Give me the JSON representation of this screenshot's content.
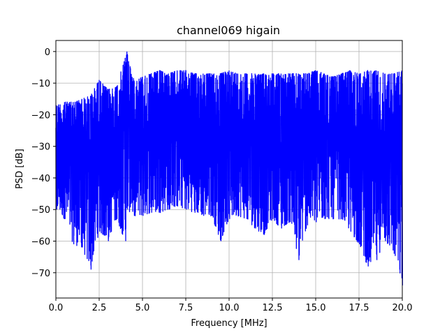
{
  "chart_data": {
    "type": "line",
    "title": "channel069 higain",
    "xlabel": "Frequency [MHz]",
    "ylabel": "PSD [dB]",
    "xlim": [
      0,
      20
    ],
    "ylim": [
      -78,
      3.5
    ],
    "xticks": [
      0,
      2.5,
      5,
      7.5,
      10,
      12.5,
      15,
      17.5,
      20
    ],
    "xtick_labels": [
      "0.0",
      "2.5",
      "5.0",
      "7.5",
      "10.0",
      "12.5",
      "15.0",
      "17.5",
      "20.0"
    ],
    "yticks": [
      0,
      -10,
      -20,
      -30,
      -40,
      -50,
      -60,
      -70
    ],
    "ytick_labels": [
      "0",
      "−10",
      "−20",
      "−30",
      "−40",
      "−50",
      "−60",
      "−70"
    ],
    "grid": true,
    "series": [
      {
        "color": "#0000ff",
        "x": [
          0,
          0.5,
          1.0,
          1.5,
          2.0,
          2.5,
          3.0,
          3.5,
          4.0,
          4.1,
          4.5,
          5.0,
          5.5,
          6.0,
          6.5,
          7.0,
          7.5,
          8.0,
          8.5,
          9.0,
          9.5,
          10.0,
          10.5,
          11.0,
          11.5,
          12.0,
          12.5,
          13.0,
          13.5,
          14.0,
          14.5,
          15.0,
          15.5,
          16.0,
          16.5,
          17.0,
          17.5,
          18.0,
          18.5,
          19.0,
          19.5,
          20.0
        ],
        "upper": [
          -17,
          -16,
          -16,
          -15,
          -14,
          -9,
          -12,
          -11,
          -2,
          0,
          -9,
          -8,
          -7,
          -6,
          -7,
          -6,
          -6,
          -7,
          -7,
          -7,
          -7,
          -6,
          -7,
          -7,
          -7,
          -7,
          -7,
          -7,
          -7,
          -7,
          -7,
          -6,
          -7,
          -8,
          -7,
          -6,
          -7,
          -6,
          -6,
          -7,
          -7,
          -6
        ],
        "lower": [
          -50,
          -53,
          -61,
          -62,
          -69,
          -57,
          -60,
          -53,
          -60,
          -50,
          -52,
          -52,
          -51,
          -51,
          -50,
          -49,
          -50,
          -51,
          -52,
          -52,
          -60,
          -53,
          -52,
          -53,
          -56,
          -58,
          -53,
          -56,
          -54,
          -66,
          -55,
          -54,
          -53,
          -53,
          -53,
          -57,
          -61,
          -68,
          -66,
          -60,
          -64,
          -74
        ]
      }
    ]
  }
}
